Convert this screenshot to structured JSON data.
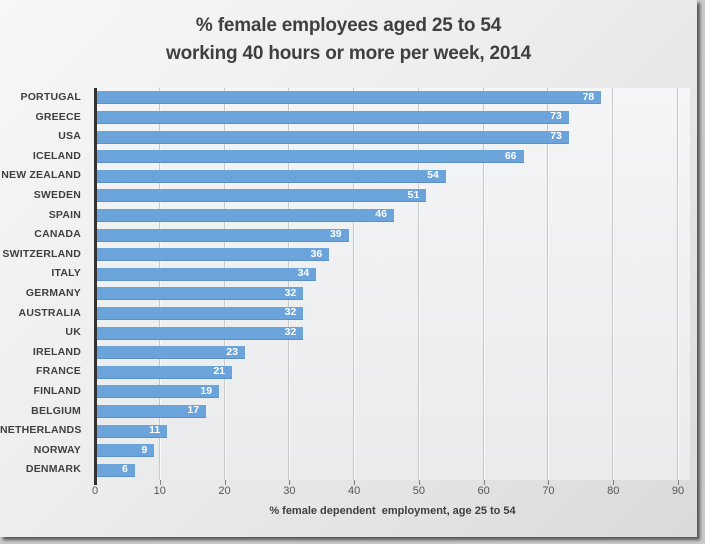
{
  "chart_data": {
    "type": "bar",
    "orientation": "horizontal",
    "title": "% female employees aged 25 to 54 working 40 hours or more per week, 2014",
    "title_lines": [
      "% female employees aged 25 to 54",
      "working 40 hours or more per week, 2014"
    ],
    "categories": [
      "PORTUGAL",
      "GREECE",
      "USA",
      "ICELAND",
      "NEW ZEALAND",
      "SWEDEN",
      "SPAIN",
      "CANADA",
      "SWITZERLAND",
      "ITALY",
      "GERMANY",
      "AUSTRALIA",
      "UK",
      "IRELAND",
      "FRANCE",
      "FINLAND",
      "BELGIUM",
      "NETHERLANDS",
      "NORWAY",
      "DENMARK"
    ],
    "values": [
      78,
      73,
      73,
      66,
      54,
      51,
      46,
      39,
      36,
      34,
      32,
      32,
      32,
      23,
      21,
      19,
      17,
      11,
      9,
      6
    ],
    "xlabel": "% female dependent  employment, age 25 to 54",
    "ylabel": "",
    "xlim": [
      0,
      90
    ],
    "xticks": [
      0,
      10,
      20,
      30,
      40,
      50,
      60,
      70,
      80,
      90
    ],
    "grid": true,
    "legend": false,
    "value_labels_position": "inside-end",
    "colors": {
      "bar": "#6BA3DB",
      "value_label_text": "#FFFFFF",
      "title_text": "#3F3F3F",
      "category_text": "#404040",
      "tick_text": "#555555",
      "axis_line": "#333333",
      "background": "#EBEBEB"
    }
  }
}
